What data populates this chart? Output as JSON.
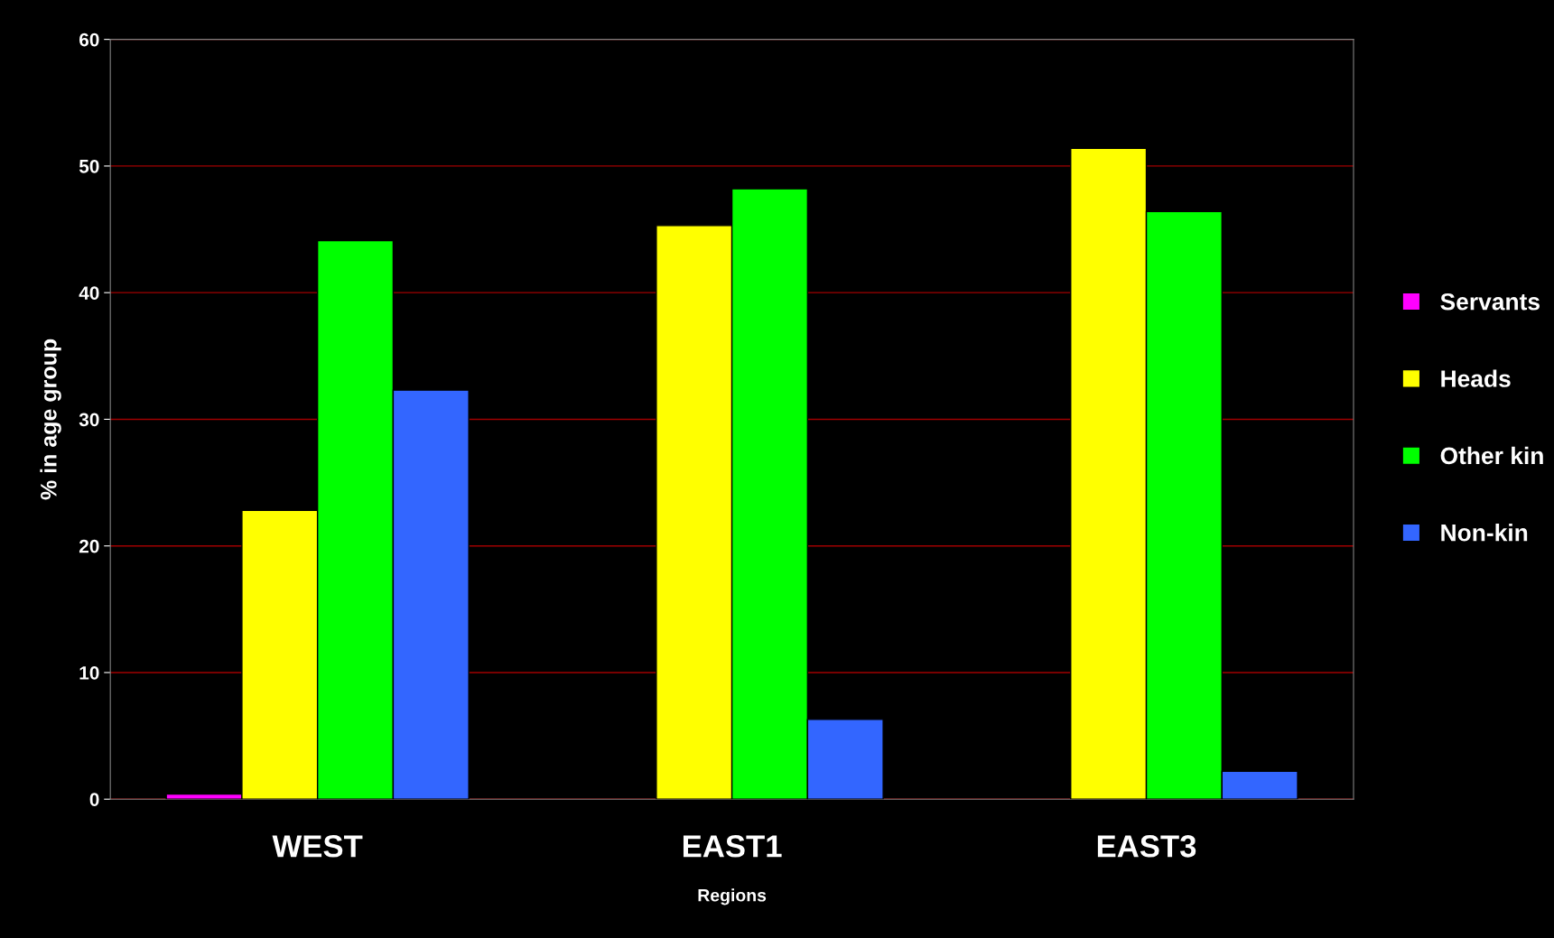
{
  "chart_data": {
    "type": "bar",
    "xlabel": "Regions",
    "ylabel": "% in age group",
    "categories": [
      "WEST",
      "EAST1",
      "EAST3"
    ],
    "series": [
      {
        "name": "Servants",
        "color": "#ff00ff",
        "values": [
          0.4,
          null,
          null
        ]
      },
      {
        "name": "Heads",
        "color": "#ffff00",
        "values": [
          22.8,
          45.3,
          51.4
        ]
      },
      {
        "name": "Other kin",
        "color": "#00ff00",
        "values": [
          44.1,
          48.2,
          46.4
        ]
      },
      {
        "name": "Non-kin",
        "color": "#3366ff",
        "values": [
          32.3,
          6.3,
          2.2
        ]
      }
    ],
    "ylim": [
      0,
      60
    ],
    "yticks": [
      0,
      10,
      20,
      30,
      40,
      50,
      60
    ],
    "grid": "y",
    "legend": "right"
  }
}
